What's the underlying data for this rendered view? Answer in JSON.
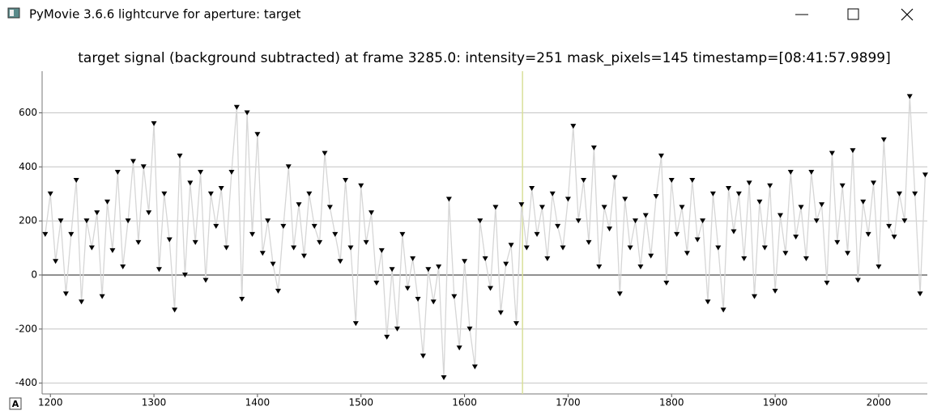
{
  "window": {
    "title": "PyMovie 3.6.6 lightcurve for aperture: target",
    "badge": "A"
  },
  "chart_data": {
    "type": "line",
    "title": "target signal (background subtracted) at frame 3285.0: intensity=251 mask_pixels=145 timestamp=[08:41:57.9899]",
    "x": [
      1195,
      1200,
      1205,
      1210,
      1215,
      1220,
      1225,
      1230,
      1235,
      1240,
      1245,
      1250,
      1255,
      1260,
      1265,
      1270,
      1275,
      1280,
      1285,
      1290,
      1295,
      1300,
      1305,
      1310,
      1315,
      1320,
      1325,
      1330,
      1335,
      1340,
      1345,
      1350,
      1355,
      1360,
      1365,
      1370,
      1375,
      1380,
      1385,
      1390,
      1395,
      1400,
      1405,
      1410,
      1415,
      1420,
      1425,
      1430,
      1435,
      1440,
      1445,
      1450,
      1455,
      1460,
      1465,
      1470,
      1475,
      1480,
      1485,
      1490,
      1495,
      1500,
      1505,
      1510,
      1515,
      1520,
      1525,
      1530,
      1535,
      1540,
      1545,
      1550,
      1555,
      1560,
      1565,
      1570,
      1575,
      1580,
      1585,
      1590,
      1595,
      1600,
      1605,
      1610,
      1615,
      1620,
      1625,
      1630,
      1635,
      1640,
      1645,
      1650,
      1655,
      1660,
      1665,
      1670,
      1675,
      1680,
      1685,
      1690,
      1695,
      1700,
      1705,
      1710,
      1715,
      1720,
      1725,
      1730,
      1735,
      1740,
      1745,
      1750,
      1755,
      1760,
      1765,
      1770,
      1775,
      1780,
      1785,
      1790,
      1795,
      1800,
      1805,
      1810,
      1815,
      1820,
      1825,
      1830,
      1835,
      1840,
      1845,
      1850,
      1855,
      1860,
      1865,
      1870,
      1875,
      1880,
      1885,
      1890,
      1895,
      1900,
      1905,
      1910,
      1915,
      1920,
      1925,
      1930,
      1935,
      1940,
      1945,
      1950,
      1955,
      1960,
      1965,
      1970,
      1975,
      1980,
      1985,
      1990,
      1995,
      2000,
      2005,
      2010,
      2015,
      2020,
      2025,
      2030,
      2035,
      2040,
      2045
    ],
    "values": [
      150,
      300,
      50,
      200,
      -70,
      150,
      350,
      -100,
      200,
      100,
      230,
      -80,
      270,
      90,
      380,
      30,
      200,
      420,
      120,
      400,
      230,
      560,
      20,
      300,
      130,
      -130,
      440,
      0,
      340,
      120,
      380,
      -20,
      300,
      180,
      320,
      100,
      380,
      620,
      -90,
      600,
      150,
      520,
      80,
      200,
      40,
      -60,
      180,
      400,
      100,
      260,
      70,
      300,
      180,
      120,
      450,
      250,
      150,
      50,
      350,
      100,
      -180,
      330,
      120,
      230,
      -30,
      90,
      -230,
      20,
      -200,
      150,
      -50,
      60,
      -90,
      -300,
      20,
      -100,
      30,
      -380,
      280,
      -80,
      -270,
      50,
      -200,
      -340,
      200,
      60,
      -50,
      250,
      -140,
      40,
      110,
      -180,
      260,
      100,
      320,
      150,
      250,
      60,
      300,
      180,
      100,
      280,
      550,
      200,
      350,
      120,
      470,
      30,
      250,
      170,
      360,
      -70,
      280,
      100,
      200,
      30,
      220,
      70,
      290,
      440,
      -30,
      350,
      150,
      250,
      80,
      350,
      130,
      200,
      -100,
      300,
      100,
      -130,
      320,
      160,
      300,
      60,
      340,
      -80,
      270,
      100,
      330,
      -60,
      220,
      80,
      380,
      140,
      250,
      60,
      380,
      200,
      260,
      -30,
      450,
      120,
      330,
      80,
      460,
      -20,
      270,
      150,
      340,
      30,
      500,
      180,
      140,
      300,
      200,
      660,
      300,
      -70,
      370
    ],
    "xlim": [
      1192,
      2047
    ],
    "ylim": [
      -440,
      754
    ],
    "xticks": [
      1200,
      1300,
      1400,
      1500,
      1600,
      1700,
      1800,
      1900,
      2000
    ],
    "yticks": [
      -400,
      -200,
      0,
      200,
      400,
      600
    ],
    "grid": true,
    "color": "#000000",
    "line_color": "#d6d6d6",
    "cursor_x": 1656,
    "cursor_color": "#d8df9a"
  }
}
